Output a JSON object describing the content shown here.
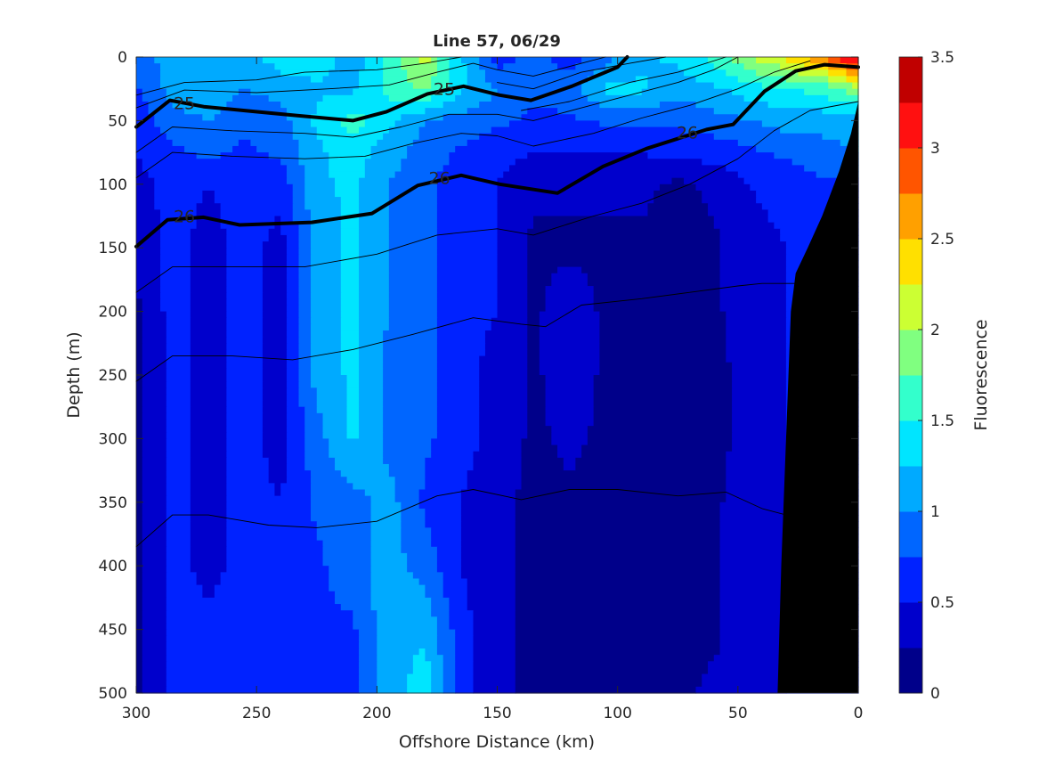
{
  "chart_data": {
    "type": "heatmap",
    "subtype": "filled-contour",
    "title": "Line 57, 06/29",
    "xlabel": "Offshore Distance (km)",
    "ylabel": "Depth (m)",
    "colorbar_label": "Fluorescence",
    "xlim": [
      300,
      0
    ],
    "ylim": [
      0,
      500
    ],
    "x_ticks": [
      "300",
      "250",
      "200",
      "150",
      "100",
      "50",
      "0"
    ],
    "x_tick_values": [
      300,
      250,
      200,
      150,
      100,
      50,
      0
    ],
    "y_ticks": [
      "0",
      "50",
      "100",
      "150",
      "200",
      "250",
      "300",
      "350",
      "400",
      "450",
      "500"
    ],
    "y_tick_values": [
      0,
      50,
      100,
      150,
      200,
      250,
      300,
      350,
      400,
      450,
      500
    ],
    "colorbar_ticks": [
      "0",
      "0.5",
      "1",
      "1.5",
      "2",
      "2.5",
      "3",
      "3.5"
    ],
    "colorbar_tick_values": [
      0,
      0.5,
      1,
      1.5,
      2,
      2.5,
      3,
      3.5
    ],
    "clim": [
      0,
      3.5
    ],
    "level_step": 0.25,
    "colormap": [
      "#00008a",
      "#0000cc",
      "#0022ff",
      "#0066ff",
      "#00aaff",
      "#00e5ff",
      "#33ffcc",
      "#80ff80",
      "#ccff33",
      "#ffe000",
      "#ffa000",
      "#ff5500",
      "#ff1010",
      "#c00000"
    ],
    "grid_x_km": [
      300,
      285,
      270,
      255,
      240,
      225,
      210,
      195,
      180,
      165,
      150,
      135,
      120,
      105,
      90,
      75,
      60,
      45,
      30,
      15,
      0
    ],
    "grid_depth_m": [
      0,
      25,
      50,
      75,
      100,
      150,
      200,
      250,
      300,
      350,
      400,
      450,
      500
    ],
    "values": [
      [
        0.9,
        1.1,
        1.2,
        1.1,
        1.4,
        1.4,
        1.1,
        1.6,
        2.1,
        1.3,
        0.6,
        0.9,
        0.6,
        0.9,
        1.2,
        1.3,
        1.6,
        2.0,
        2.3,
        2.8,
        3.4
      ],
      [
        0.7,
        1.1,
        1.2,
        1.0,
        1.1,
        1.2,
        1.2,
        1.6,
        1.8,
        1.3,
        1.0,
        0.8,
        0.9,
        1.3,
        1.3,
        1.1,
        1.2,
        1.4,
        1.5,
        1.6,
        1.9
      ],
      [
        0.6,
        0.9,
        1.0,
        0.8,
        0.9,
        1.3,
        1.6,
        1.3,
        1.0,
        0.9,
        0.8,
        0.7,
        0.7,
        0.8,
        0.8,
        0.8,
        0.9,
        1.0,
        1.1,
        1.1,
        1.1
      ],
      [
        0.5,
        0.7,
        0.8,
        0.7,
        0.8,
        1.2,
        1.4,
        1.1,
        0.9,
        0.7,
        0.6,
        0.5,
        0.5,
        0.5,
        0.5,
        0.6,
        0.6,
        0.7,
        0.8,
        0.9,
        1.0
      ],
      [
        0.4,
        0.6,
        0.5,
        0.6,
        0.6,
        1.2,
        1.3,
        1.0,
        0.8,
        0.6,
        0.5,
        0.3,
        0.3,
        0.3,
        0.3,
        0.2,
        0.3,
        0.5,
        0.6,
        0.7,
        0.7
      ],
      [
        0.3,
        0.6,
        0.4,
        0.6,
        0.4,
        1.1,
        1.3,
        1.0,
        0.8,
        0.6,
        0.5,
        0.2,
        0.2,
        0.2,
        0.2,
        0.2,
        0.2,
        0.4,
        0.5,
        0.5,
        0.5
      ],
      [
        0.2,
        0.6,
        0.4,
        0.6,
        0.4,
        1.1,
        1.3,
        1.0,
        0.8,
        0.6,
        0.5,
        0.2,
        0.4,
        0.2,
        0.2,
        0.2,
        0.2,
        0.4,
        0.5,
        0.5,
        0.5
      ],
      [
        0.2,
        0.6,
        0.4,
        0.6,
        0.4,
        1.1,
        1.3,
        0.9,
        0.8,
        0.6,
        0.4,
        0.2,
        0.4,
        0.2,
        0.2,
        0.2,
        0.2,
        0.3,
        0.5,
        0.5,
        0.5
      ],
      [
        0.2,
        0.6,
        0.4,
        0.6,
        0.4,
        0.9,
        1.3,
        0.9,
        0.8,
        0.6,
        0.4,
        0.2,
        0.3,
        0.2,
        0.2,
        0.2,
        0.2,
        0.3,
        0.5,
        0.5,
        0.5
      ],
      [
        0.2,
        0.6,
        0.4,
        0.6,
        0.5,
        0.8,
        0.9,
        1.1,
        0.7,
        0.5,
        0.3,
        0.2,
        0.2,
        0.2,
        0.2,
        0.2,
        0.2,
        0.4,
        0.5,
        0.5,
        0.5
      ],
      [
        0.2,
        0.6,
        0.4,
        0.6,
        0.6,
        0.7,
        0.9,
        1.1,
        0.9,
        0.5,
        0.3,
        0.2,
        0.2,
        0.2,
        0.2,
        0.2,
        0.2,
        0.4,
        0.5,
        0.5,
        0.5
      ],
      [
        0.2,
        0.6,
        0.6,
        0.6,
        0.6,
        0.7,
        0.7,
        1.2,
        1.2,
        0.6,
        0.3,
        0.2,
        0.2,
        0.2,
        0.2,
        0.2,
        0.2,
        0.4,
        0.5,
        0.5,
        0.5
      ],
      [
        0.2,
        0.6,
        0.7,
        0.6,
        0.5,
        0.6,
        0.7,
        1.1,
        1.4,
        0.6,
        0.3,
        0.2,
        0.2,
        0.2,
        0.2,
        0.2,
        0.3,
        0.4,
        0.5,
        0.5,
        0.5
      ]
    ],
    "bathymetry_km_m": [
      [
        33.5,
        500
      ],
      [
        32,
        400
      ],
      [
        30,
        300
      ],
      [
        28,
        200
      ],
      [
        26,
        170
      ],
      [
        21,
        150
      ],
      [
        15,
        125
      ],
      [
        8,
        90
      ],
      [
        3,
        60
      ],
      [
        0,
        35
      ]
    ],
    "bathymetry_color": "#000000",
    "density_contours": [
      {
        "level": "25",
        "thick": true,
        "points": [
          [
            300,
            55
          ],
          [
            286,
            34
          ],
          [
            272,
            39
          ],
          [
            239,
            45
          ],
          [
            210,
            50
          ],
          [
            196,
            43
          ],
          [
            179,
            29
          ],
          [
            164,
            23
          ],
          [
            149,
            30
          ],
          [
            136,
            34
          ],
          [
            119,
            23
          ],
          [
            100,
            8
          ],
          [
            96,
            0
          ]
        ]
      },
      {
        "level": "26",
        "thick": true,
        "points": [
          [
            300,
            149
          ],
          [
            287,
            128
          ],
          [
            272,
            126
          ],
          [
            257,
            132
          ],
          [
            227,
            130
          ],
          [
            202,
            123
          ],
          [
            183,
            101
          ],
          [
            165,
            93
          ],
          [
            149,
            100
          ],
          [
            125,
            107
          ],
          [
            106,
            86
          ],
          [
            88,
            72
          ],
          [
            63,
            57
          ],
          [
            52,
            53
          ],
          [
            39,
            27
          ],
          [
            26,
            11
          ],
          [
            14,
            6
          ],
          [
            0,
            8
          ]
        ]
      },
      {
        "level": "",
        "thick": false,
        "points": [
          [
            300,
            30
          ],
          [
            280,
            20
          ],
          [
            250,
            18
          ],
          [
            230,
            12
          ],
          [
            200,
            10
          ],
          [
            180,
            5
          ],
          [
            165,
            0
          ]
        ]
      },
      {
        "level": "",
        "thick": false,
        "points": [
          [
            300,
            40
          ],
          [
            280,
            26
          ],
          [
            250,
            28
          ],
          [
            220,
            25
          ],
          [
            195,
            22
          ],
          [
            175,
            12
          ],
          [
            160,
            5
          ],
          [
            150,
            10
          ],
          [
            135,
            15
          ],
          [
            115,
            5
          ],
          [
            105,
            0
          ]
        ]
      },
      {
        "level": "",
        "thick": false,
        "points": [
          [
            150,
            20
          ],
          [
            135,
            25
          ],
          [
            115,
            12
          ],
          [
            95,
            5
          ],
          [
            80,
            0
          ]
        ]
      },
      {
        "level": "",
        "thick": false,
        "points": [
          [
            140,
            42
          ],
          [
            120,
            35
          ],
          [
            95,
            20
          ],
          [
            75,
            12
          ],
          [
            55,
            0
          ]
        ]
      },
      {
        "level": "",
        "thick": false,
        "points": [
          [
            300,
            75
          ],
          [
            285,
            55
          ],
          [
            260,
            58
          ],
          [
            230,
            60
          ],
          [
            210,
            63
          ],
          [
            190,
            55
          ],
          [
            170,
            45
          ],
          [
            150,
            45
          ],
          [
            135,
            50
          ],
          [
            115,
            40
          ],
          [
            95,
            30
          ],
          [
            75,
            20
          ],
          [
            60,
            10
          ],
          [
            50,
            0
          ]
        ]
      },
      {
        "level": "",
        "thick": false,
        "points": [
          [
            300,
            95
          ],
          [
            285,
            75
          ],
          [
            260,
            78
          ],
          [
            230,
            80
          ],
          [
            205,
            78
          ],
          [
            185,
            68
          ],
          [
            165,
            60
          ],
          [
            150,
            62
          ],
          [
            135,
            70
          ],
          [
            110,
            60
          ],
          [
            90,
            48
          ],
          [
            70,
            38
          ],
          [
            50,
            25
          ],
          [
            35,
            12
          ],
          [
            20,
            3
          ]
        ]
      },
      {
        "level": "",
        "thick": false,
        "points": [
          [
            300,
            185
          ],
          [
            285,
            165
          ],
          [
            260,
            165
          ],
          [
            230,
            165
          ],
          [
            200,
            155
          ],
          [
            175,
            140
          ],
          [
            150,
            135
          ],
          [
            135,
            140
          ],
          [
            110,
            125
          ],
          [
            90,
            115
          ],
          [
            70,
            100
          ],
          [
            50,
            80
          ],
          [
            35,
            58
          ],
          [
            20,
            42
          ],
          [
            0,
            35
          ]
        ]
      },
      {
        "level": "",
        "thick": false,
        "points": [
          [
            300,
            255
          ],
          [
            285,
            235
          ],
          [
            260,
            235
          ],
          [
            235,
            238
          ],
          [
            210,
            230
          ],
          [
            185,
            218
          ],
          [
            160,
            205
          ],
          [
            140,
            210
          ],
          [
            130,
            212
          ],
          [
            115,
            195
          ],
          [
            90,
            190
          ],
          [
            70,
            185
          ],
          [
            50,
            180
          ],
          [
            40,
            178
          ],
          [
            25,
            178
          ]
        ]
      },
      {
        "level": "",
        "thick": false,
        "points": [
          [
            300,
            385
          ],
          [
            285,
            360
          ],
          [
            270,
            360
          ],
          [
            245,
            368
          ],
          [
            225,
            370
          ],
          [
            200,
            365
          ],
          [
            175,
            345
          ],
          [
            160,
            340
          ],
          [
            140,
            348
          ],
          [
            120,
            340
          ],
          [
            100,
            340
          ],
          [
            75,
            345
          ],
          [
            55,
            342
          ],
          [
            40,
            355
          ],
          [
            30,
            360
          ]
        ]
      }
    ],
    "contour_labels": [
      {
        "text": "25",
        "km": 280,
        "depth": 36
      },
      {
        "text": "25",
        "km": 172,
        "depth": 25
      },
      {
        "text": "26",
        "km": 280,
        "depth": 125
      },
      {
        "text": "26",
        "km": 174,
        "depth": 95
      },
      {
        "text": "26",
        "km": 71,
        "depth": 59
      }
    ]
  }
}
